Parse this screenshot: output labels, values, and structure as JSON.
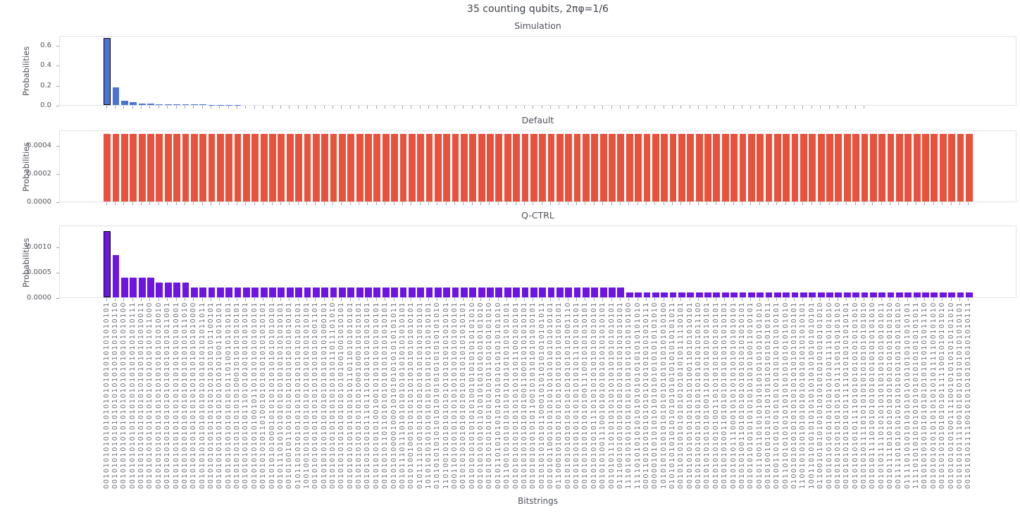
{
  "figure": {
    "title": "35 counting qubits, 2πφ=1/6",
    "xlabel": "Bitstrings",
    "ylabel": "Probabilities"
  },
  "chart_data": [
    {
      "type": "bar",
      "title": "Simulation",
      "color": "#4A74D4",
      "highlight_index": 0,
      "highlight_edge_color": "#000000",
      "ylim": [
        0,
        0.7
      ],
      "yticks": [
        0.0,
        0.2,
        0.4,
        0.6
      ],
      "ytick_labels": [
        "0.0",
        "0.2",
        "0.4",
        "0.6"
      ],
      "grid": false,
      "legend": "none",
      "values": [
        0.684,
        0.18,
        0.042,
        0.031,
        0.016,
        0.015,
        0.008,
        0.0075,
        0.007,
        0.0065,
        0.006,
        0.0055,
        0.002,
        0.0015,
        0.001,
        0.001,
        0,
        0,
        0,
        0,
        0,
        0,
        0,
        0,
        0,
        0,
        0,
        0,
        0,
        0,
        0,
        0,
        0,
        0,
        0,
        0,
        0,
        0,
        0,
        0,
        0,
        0,
        0,
        0,
        0,
        0,
        0,
        0,
        0,
        0,
        0,
        0,
        0,
        0,
        0,
        0,
        0,
        0,
        0,
        0,
        0,
        0,
        0,
        0,
        0,
        0,
        0,
        0,
        0,
        0,
        0,
        0,
        0,
        0,
        0,
        0,
        0,
        0,
        0,
        0,
        0,
        0,
        0,
        0,
        0,
        0,
        0,
        0
      ]
    },
    {
      "type": "bar",
      "title": "Default",
      "color": "#E8513C",
      "highlight_index": -1,
      "highlight_edge_color": "#000000",
      "ylim": [
        0,
        0.00051
      ],
      "yticks": [
        0.0,
        0.0002,
        0.0004
      ],
      "ytick_labels": [
        "0.0000",
        "0.0002",
        "0.0004"
      ],
      "grid": false,
      "legend": "none",
      "values": [
        0.000488,
        0.000488,
        0.000488,
        0.000488,
        0.000488,
        0.000488,
        0.000488,
        0.000488,
        0.000488,
        0.000488,
        0.000488,
        0.000488,
        0.000488,
        0.000488,
        0.000488,
        0.000488,
        0.000488,
        0.000488,
        0.000488,
        0.000488,
        0.000488,
        0.000488,
        0.000488,
        0.000488,
        0.000488,
        0.000488,
        0.000488,
        0.000488,
        0.000488,
        0.000488,
        0.000488,
        0.000488,
        0.000488,
        0.000488,
        0.000488,
        0.000488,
        0.000488,
        0.000488,
        0.000488,
        0.000488,
        0.000488,
        0.000488,
        0.000488,
        0.000488,
        0.000488,
        0.000488,
        0.000488,
        0.000488,
        0.000488,
        0.000488,
        0.000488,
        0.000488,
        0.000488,
        0.000488,
        0.000488,
        0.000488,
        0.000488,
        0.000488,
        0.000488,
        0.000488,
        0.000488,
        0.000488,
        0.000488,
        0.000488,
        0.000488,
        0.000488,
        0.000488,
        0.000488,
        0.000488,
        0.000488,
        0.000488,
        0.000488,
        0.000488,
        0.000488,
        0.000488,
        0.000488,
        0.000488,
        0.000488,
        0.000488,
        0.000488,
        0.000488,
        0.000488,
        0.000488,
        0.000488,
        0.000488,
        0.000488,
        0.000488,
        0.000488,
        0.000488,
        0.000488,
        0.000488,
        0.000488,
        0.000488,
        0.000488,
        0.000488,
        0.000488,
        0.000488,
        0.000488,
        0.000488,
        0.000488
      ]
    },
    {
      "type": "bar",
      "title": "Q-CTRL",
      "color": "#6C15E4",
      "highlight_index": 0,
      "highlight_edge_color": "#000000",
      "ylim": [
        0,
        0.00144
      ],
      "yticks": [
        0.0,
        0.0005,
        0.001
      ],
      "ytick_labels": [
        "0.0000",
        "0.0005",
        "0.0010"
      ],
      "grid": false,
      "legend": "none",
      "values": [
        0.00134,
        0.00085,
        0.0004,
        0.0004,
        0.0004,
        0.0004,
        0.0003,
        0.0003,
        0.0003,
        0.0003,
        0.0002,
        0.0002,
        0.0002,
        0.0002,
        0.0002,
        0.0002,
        0.0002,
        0.0002,
        0.0002,
        0.0002,
        0.0002,
        0.0002,
        0.0002,
        0.0002,
        0.0002,
        0.0002,
        0.0002,
        0.0002,
        0.0002,
        0.0002,
        0.0002,
        0.0002,
        0.0002,
        0.0002,
        0.0002,
        0.0002,
        0.0002,
        0.0002,
        0.0002,
        0.0002,
        0.0002,
        0.0002,
        0.0002,
        0.0002,
        0.0002,
        0.0002,
        0.0002,
        0.0002,
        0.0002,
        0.0002,
        0.0002,
        0.0002,
        0.0002,
        0.0002,
        0.0002,
        0.0002,
        0.0002,
        0.0002,
        0.0002,
        0.0002,
        0.0001,
        0.0001,
        0.0001,
        0.0001,
        0.0001,
        0.0001,
        0.0001,
        0.0001,
        0.0001,
        0.0001,
        0.0001,
        0.0001,
        0.0001,
        0.0001,
        0.0001,
        0.0001,
        0.0001,
        0.0001,
        0.0001,
        0.0001,
        0.0001,
        0.0001,
        0.0001,
        0.0001,
        0.0001,
        0.0001,
        0.0001,
        0.0001,
        0.0001,
        0.0001,
        0.0001,
        0.0001,
        0.0001,
        0.0001,
        0.0001,
        0.0001,
        0.0001,
        0.0001,
        0.0001,
        0.0001
      ]
    }
  ],
  "categories": [
    "00101010101010101010101010101010101",
    "00101010101010101010101010101010110",
    "00101010101010101010101010101010100",
    "00101010101010101010101010101010111",
    "00101010101010101010101010101010011",
    "00101010101010101010101010101011000",
    "00101010101010101010101010101010010",
    "00101010101010101010101010101011001",
    "00101010101010101010101010101010001",
    "00101010101010101010101010101011010",
    "00101010101010101010101010101010000",
    "00101010101010101010101010101011011",
    "00101010101010101010101010101100101",
    "00101010101010101010101010011010101",
    "00101010101010101010110100101010101",
    "00101010101010101010001010101010101",
    "00101010101010111010101010101010101",
    "00101010101010010110101010101010101",
    "00101010101101001010101010101010101",
    "00101010100010101010101010101010101",
    "00101110101010101010101010101010101",
    "00101001011010101010101010101010101",
    "01011010101010101010101010101010101",
    "10010010101010101010101010101010101",
    "00101010101010101010101010101001101",
    "00101010101010101010101010101000101",
    "0010101010101010101010101101110101",
    "00101010101010101010101001001010101",
    "00101010101010101010110110101010101",
    "00101010101010101010001000101010101",
    "00101010101011101110101010101010101",
    "00101010101010010010101010101010101",
    "00101010110110101010101010101010101",
    "00101010000100010101010101010101011",
    "00101110111010101010101010101010101",
    "00101001001010101010101010101010101",
    "01011110101010101010101010101010101",
    "10101010101010101010101010101010101",
    "01010101010101010101010101010101010",
    "11010010101010101010101010101010101",
    "00011010101010101010101010101010101",
    "00101010101010101010101010101010101",
    "00101010101010101001010101010101010",
    "00101010101011010101010101010101010",
    "00101010101010101010101101010101010",
    "00101101010101010101010101010101010",
    "00110010101010101010101010101010101",
    "00101010101010101010101011001010101",
    "00101010101010101001100010101010101",
    "00101010101010110010101010101010101",
    "00101010101011000101010101010101011",
    "00101011001010101010101010101010101",
    "01100010101010101010101010101010101",
    "00101010101010101010101010101001110",
    "00101010101010101010101011101010101",
    "00101010101010101001110010101010101",
    "00101010101011101010101010101010101",
    "00101010011100101010101010101010101",
    "00101011101010101010101010101010101",
    "01110010101010101010101010101010101",
    "11101010101010101010101010101010100",
    "11110101010101010101010101010101010",
    "00011010101010101010101010101010111",
    "00000101010101010101010101010101010",
    "10101010101010101010101010101010100",
    "01010101010101010101010101010101011",
    "00101010101010101010101010111110101",
    "00101010101010101010100110101010101",
    "00101010101010101010101010101011100",
    "00101010101010100110101010101010101",
    "00101010101010011010101010101010101",
    "00101010100110101010101010101010101",
    "00101010111000101010101010101010101",
    "00101010011010101010101010101010101",
    "00101010101010101010101010011010101",
    "00101100110101010101010101010101010",
    "00101001010101010101010101010101011",
    "00100110101010101010101010101010101",
    "00110101010101010101010101010101010",
    "01001010101010101010101010101010101",
    "11001010101010101010101010101010101",
    "10011010101010101010101010101010101",
    "01100101010101010101010101010101010",
    "00101010101010101010101011110101010",
    "00101010101010101010111101010101010",
    "00101010101010101111101010101010101",
    "00101010101011110101010101010101010",
    "00101010111101010101010101010101010",
    "00101011110101010101010101010101010",
    "00101011110101010101010101010101011",
    "00101111010101010101010101010101010",
    "00111101010101010101010101010101010",
    "01111010101010101010101010101010101",
    "11110101010101010101010101010101011",
    "00101010101010101010101010101011110",
    "00101010101010101010101111100101010",
    "00101010101010101011111001010101010",
    "00101010101001111001010101010101010",
    "00101010111100101010101010101010101",
    "00101010111100101010101010101010111"
  ]
}
